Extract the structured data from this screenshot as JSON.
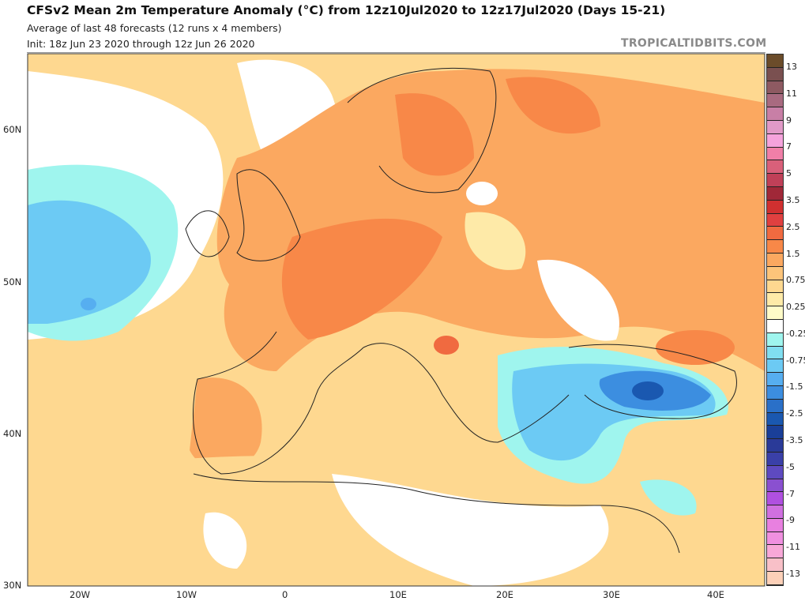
{
  "header": {
    "title": "CFSv2 Mean 2m Temperature Anomaly (°C) from 12z10Jul2020 to 12z17Jul2020 (Days 15-21)",
    "subtitle": "Average of last 48 forecasts (12 runs x 4 members)",
    "init": "Init: 18z Jun 23 2020 through 12z Jun 26 2020",
    "brand": "TROPICALTIDBITS.COM"
  },
  "map": {
    "region": "Europe",
    "lat_labels": [
      "60N",
      "50N",
      "40N",
      "30N"
    ],
    "lon_labels": [
      "20W",
      "10W",
      "0",
      "10E",
      "20E",
      "30E",
      "40E"
    ],
    "colors": {
      "ocean_cool": "#9ff5ee",
      "warm": "#fba860",
      "hot": "#f88848",
      "neutral": "#ffffff",
      "cold": "#3c8ee0"
    }
  },
  "colorbar": {
    "labels": [
      "13",
      "11",
      "9",
      "7",
      "5",
      "3.5",
      "2.5",
      "1.5",
      "0.75",
      "0.25",
      "-0.25",
      "-0.75",
      "-1.5",
      "-2.5",
      "-3.5",
      "-5",
      "-7",
      "-9",
      "-11",
      "-13"
    ],
    "colors": [
      "#6b4c2a",
      "#7a5050",
      "#8e5a62",
      "#a86a80",
      "#c87fa6",
      "#e19ac8",
      "#f5a3dc",
      "#f07fa8",
      "#d9607a",
      "#c04058",
      "#a02838",
      "#d03030",
      "#e04040",
      "#f06a40",
      "#f88848",
      "#fba860",
      "#fdc47a",
      "#fed890",
      "#feeaa8",
      "#fffbc8",
      "#ffffff",
      "#9ff5ee",
      "#80def0",
      "#6ccaf4",
      "#56aef0",
      "#3c8ee0",
      "#2a70c8",
      "#1a58b0",
      "#1a3f98",
      "#2a3a98",
      "#3a40a8",
      "#5e4ac0",
      "#8a50d0",
      "#b050e0",
      "#d070e0",
      "#e880e0",
      "#f090e0",
      "#f8a8d8",
      "#f8c0c8",
      "#fcd0b8"
    ]
  }
}
